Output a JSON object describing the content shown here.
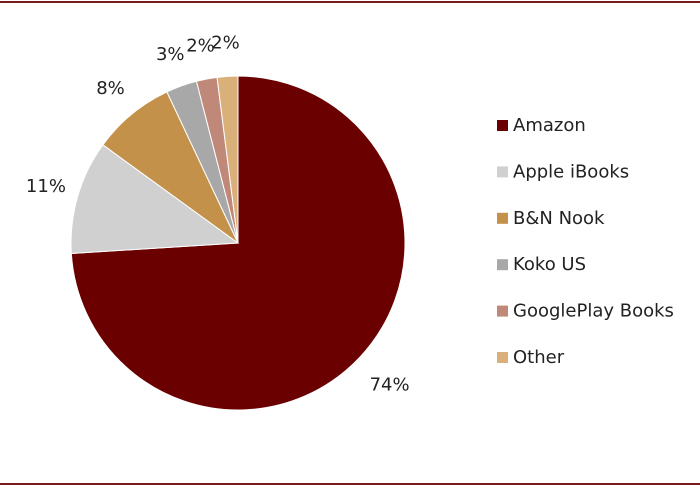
{
  "chart_data": {
    "type": "pie",
    "categories": [
      "Amazon",
      "Apple iBooks",
      "B&N Nook",
      "Koko US",
      "GooglePlay Books",
      "Other"
    ],
    "values": [
      74,
      11,
      8,
      3,
      2,
      2
    ],
    "value_labels": [
      "74%",
      "11%",
      "8%",
      "3%",
      "2%",
      "2%"
    ],
    "colors": [
      "#6b0000",
      "#d0d0d0",
      "#c4914a",
      "#a8a8a8",
      "#c08878",
      "#d9b07a"
    ],
    "legend": "right"
  }
}
